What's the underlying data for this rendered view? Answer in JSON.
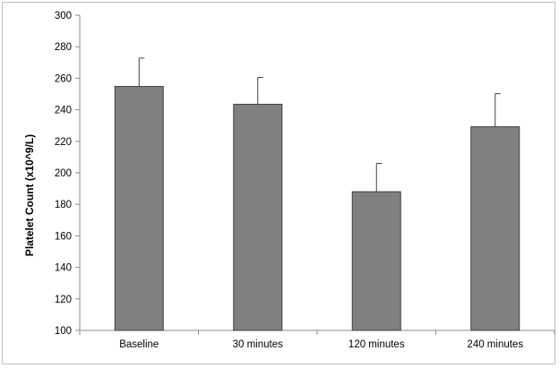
{
  "chart_data": {
    "type": "bar",
    "title": "",
    "xlabel": "",
    "ylabel": "Platelet Count (x10^9/L)",
    "categories": [
      "Baseline",
      "30 minutes",
      "120 minutes",
      "240 minutes"
    ],
    "series": [
      {
        "values": [
          254.8,
          243.5,
          188.0,
          229.2
        ],
        "error_plus": [
          18.0,
          17.0,
          18.0,
          21.0
        ]
      }
    ],
    "ylim": [
      100,
      300
    ],
    "yticks": [
      100,
      120,
      140,
      160,
      180,
      200,
      220,
      240,
      260,
      280,
      300
    ],
    "grid": false,
    "legend": "none",
    "colors": {
      "bar_fill": "#808080",
      "bar_stroke": "#404040",
      "axis": "#8c8c8c",
      "error_bar": "#404040"
    }
  }
}
